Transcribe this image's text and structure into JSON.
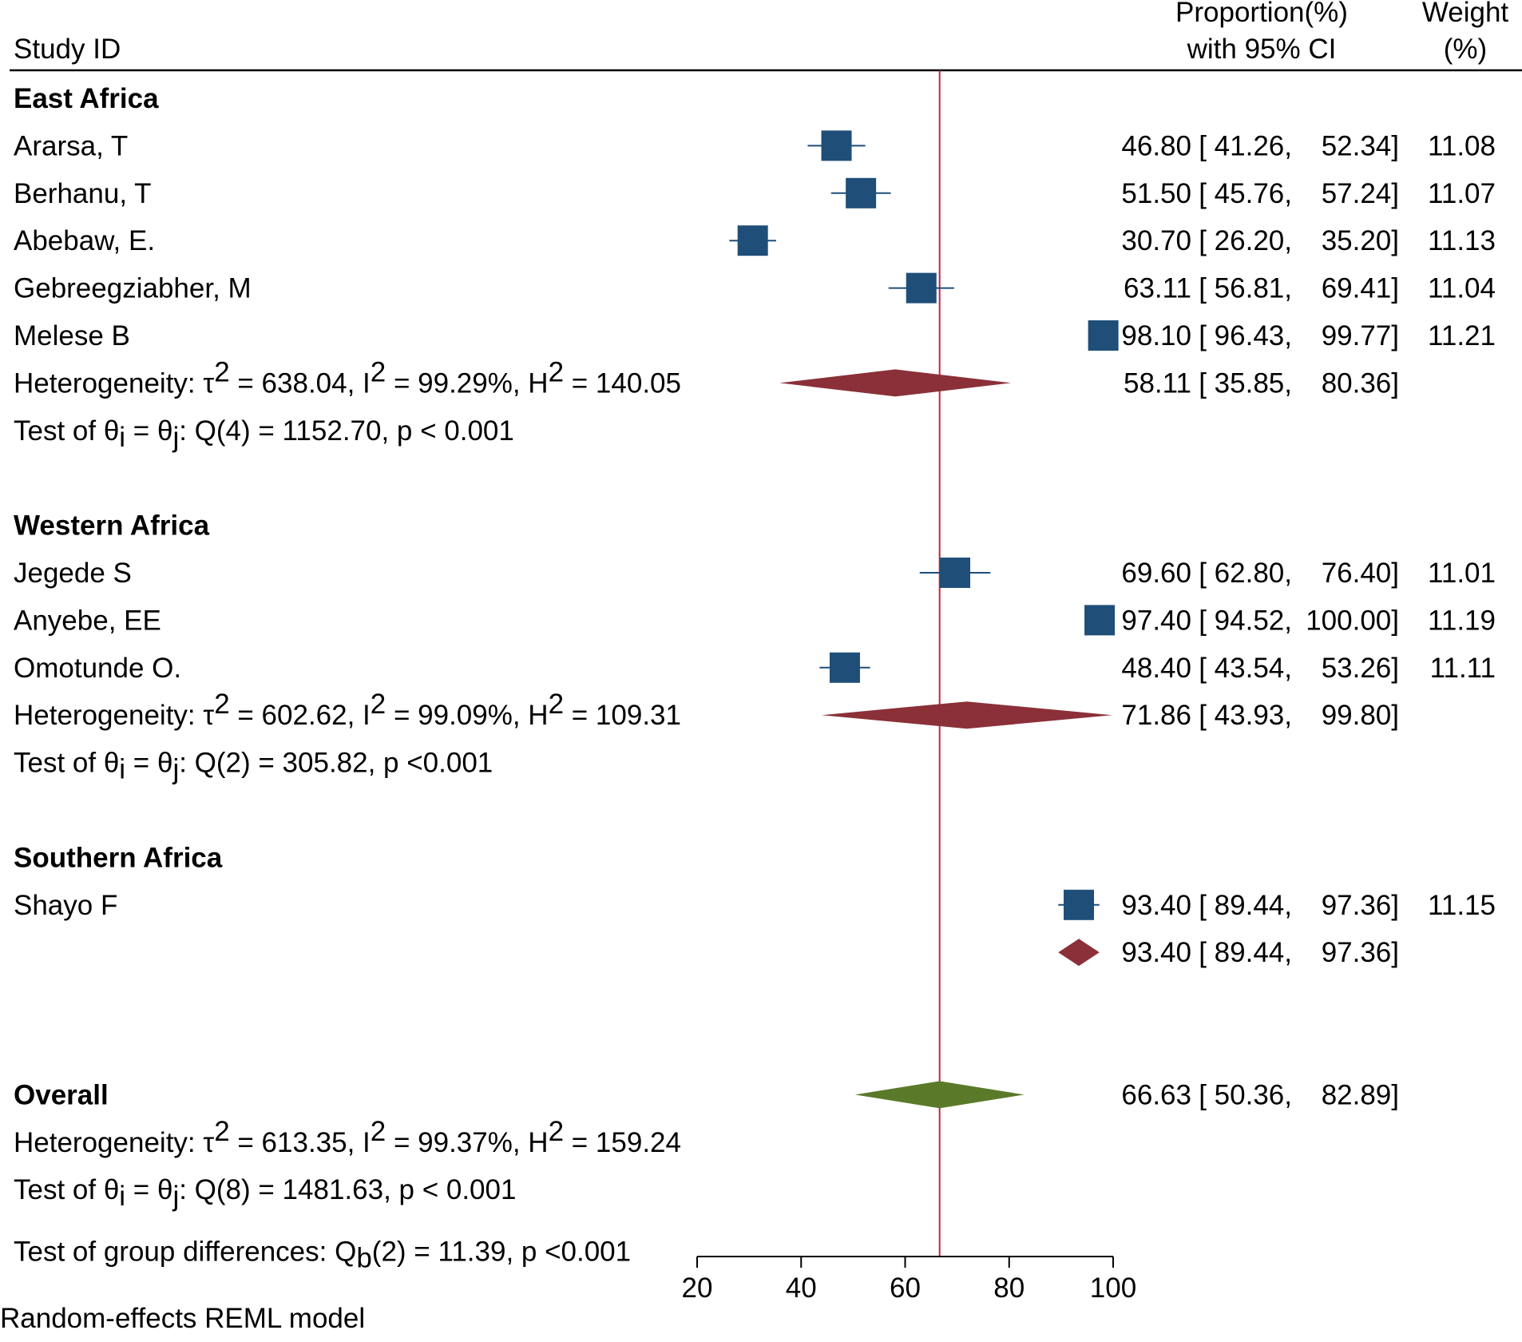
{
  "chart_data": {
    "type": "forest",
    "header": {
      "study_col": "Study ID",
      "estimate_col_line1": "Proportion(%)",
      "estimate_col_line2": "with 95% CI",
      "weight_col_line1": "Weight",
      "weight_col_line2": "(%)"
    },
    "axis": {
      "min": 20,
      "max": 100,
      "ticks": [
        "20",
        "40",
        "60",
        "80",
        "100"
      ]
    },
    "overall_line_value": 66.63,
    "rows": [
      {
        "kind": "group",
        "label": "East Africa"
      },
      {
        "kind": "study",
        "label": "Ararsa, T",
        "est": 46.8,
        "lo": 41.26,
        "hi": 52.34,
        "est_text": "46.80",
        "lo_text": "[ 41.26,",
        "hi_text": "52.34]",
        "weight_text": "11.08"
      },
      {
        "kind": "study",
        "label": "Berhanu, T",
        "est": 51.5,
        "lo": 45.76,
        "hi": 57.24,
        "est_text": "51.50",
        "lo_text": "[ 45.76,",
        "hi_text": "57.24]",
        "weight_text": "11.07"
      },
      {
        "kind": "study",
        "label": "Abebaw, E.",
        "est": 30.7,
        "lo": 26.2,
        "hi": 35.2,
        "est_text": "30.70",
        "lo_text": "[ 26.20,",
        "hi_text": "35.20]",
        "weight_text": "11.13"
      },
      {
        "kind": "study",
        "label": "Gebreegziabher, M",
        "est": 63.11,
        "lo": 56.81,
        "hi": 69.41,
        "est_text": "63.11",
        "lo_text": "[ 56.81,",
        "hi_text": "69.41]",
        "weight_text": "11.04"
      },
      {
        "kind": "study",
        "label": "Melese B",
        "est": 98.1,
        "lo": 96.43,
        "hi": 99.77,
        "est_text": "98.10",
        "lo_text": "[ 96.43,",
        "hi_text": "99.77]",
        "weight_text": "11.21"
      },
      {
        "kind": "subtotal",
        "het": {
          "tau2": "638.04",
          "i2": "99.29%",
          "h2": "140.05"
        },
        "est": 58.11,
        "lo": 35.85,
        "hi": 80.36,
        "est_text": "58.11",
        "lo_text": "[ 35.85,",
        "hi_text": "80.36]"
      },
      {
        "kind": "test",
        "df": "4",
        "q": "1152.70",
        "p": "p < 0.001"
      },
      {
        "kind": "blank"
      },
      {
        "kind": "group",
        "label": "Western Africa"
      },
      {
        "kind": "study",
        "label": "Jegede S",
        "est": 69.6,
        "lo": 62.8,
        "hi": 76.4,
        "est_text": "69.60",
        "lo_text": "[ 62.80,",
        "hi_text": "76.40]",
        "weight_text": "11.01"
      },
      {
        "kind": "study",
        "label": "Anyebe, EE",
        "est": 97.4,
        "lo": 94.52,
        "hi": 100.0,
        "est_text": "97.40",
        "lo_text": "[ 94.52,",
        "hi_text": "100.00]",
        "weight_text": "11.19"
      },
      {
        "kind": "study",
        "label": "Omotunde O.",
        "est": 48.4,
        "lo": 43.54,
        "hi": 53.26,
        "est_text": "48.40",
        "lo_text": "[ 43.54,",
        "hi_text": "53.26]",
        "weight_text": "11.11"
      },
      {
        "kind": "subtotal",
        "het": {
          "tau2": "602.62",
          "i2": "99.09%",
          "h2": "109.31"
        },
        "est": 71.86,
        "lo": 43.93,
        "hi": 99.8,
        "est_text": "71.86",
        "lo_text": "[ 43.93,",
        "hi_text": "99.80]"
      },
      {
        "kind": "test",
        "df": "2",
        "q": "305.82",
        "p": "p <0.001"
      },
      {
        "kind": "blank"
      },
      {
        "kind": "group",
        "label": "Southern Africa"
      },
      {
        "kind": "study",
        "label": "Shayo F",
        "est": 93.4,
        "lo": 89.44,
        "hi": 97.36,
        "est_text": "93.40",
        "lo_text": "[ 89.44,",
        "hi_text": "97.36]",
        "weight_text": "11.15"
      },
      {
        "kind": "subtotal_nohet",
        "est": 93.4,
        "lo": 89.44,
        "hi": 97.36,
        "est_text": "93.40",
        "lo_text": "[ 89.44,",
        "hi_text": "97.36]"
      },
      {
        "kind": "blank"
      },
      {
        "kind": "blank"
      },
      {
        "kind": "overall",
        "label": "Overall",
        "est": 66.63,
        "lo": 50.36,
        "hi": 82.89,
        "est_text": "66.63",
        "lo_text": "[ 50.36,",
        "hi_text": "82.89]"
      },
      {
        "kind": "overall_het",
        "het": {
          "tau2": "613.35",
          "i2": "99.37%",
          "h2": "159.24"
        }
      },
      {
        "kind": "test",
        "df": "8",
        "q": "1481.63",
        "p": "p < 0.001"
      },
      {
        "kind": "groupdiff",
        "text_before": "Test of group differences: Q",
        "sub": "b",
        "text_after": "(2) = 11.39, p <0.001"
      }
    ],
    "footnote": "Random-effects REML model",
    "colors": {
      "study_marker": "#1f4e79",
      "subgroup_diamond": "#8b3038",
      "overall_diamond": "#5a7a2a",
      "reference_line": "#c4223c",
      "text": "#000000"
    }
  }
}
